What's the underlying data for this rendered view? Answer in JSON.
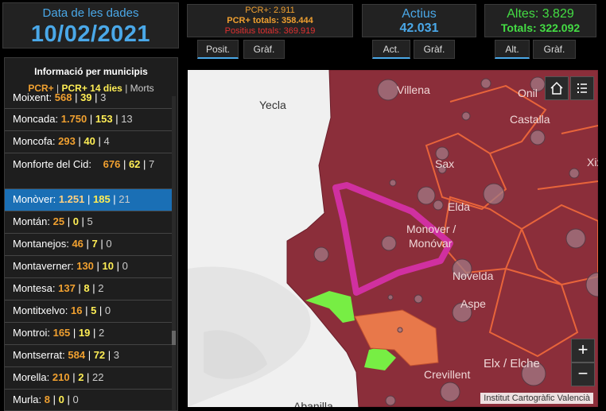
{
  "date_panel": {
    "label": "Data de les dades",
    "date": "10/02/2021"
  },
  "pcr_panel": {
    "pcr_plus": "PCR+: 2.911",
    "pcr_totals": "PCR+ totals: 358.444",
    "positius_totals": "Positius totals: 369.919"
  },
  "actius_panel": {
    "title": "Actius",
    "value": "42.031"
  },
  "altes_panel": {
    "title": "Altes: 3.829",
    "totals": "Totals: 322.092"
  },
  "tabs": {
    "posit": "Posit.",
    "graf1": "Gràf.",
    "act": "Act.",
    "graf2": "Gràf.",
    "alt": "Alt.",
    "graf3": "Gràf."
  },
  "list": {
    "title": "Informació per municipis",
    "legend_pcr": "PCR+",
    "legend_sep1": "|",
    "legend_pcr14": "PCR+ 14 dies",
    "legend_sep2": "|",
    "legend_morts": "Morts",
    "items": [
      {
        "name": "Moixent:",
        "v1": "568",
        "v2": "39",
        "v3": "3"
      },
      {
        "name": "Moncada:",
        "v1": "1.750",
        "v2": "153",
        "v3": "13"
      },
      {
        "name": "Moncofa:",
        "v1": "293",
        "v2": "40",
        "v3": "4"
      },
      {
        "name": "Monforte del Cid:",
        "v1": "676",
        "v2": "62",
        "v3": "7"
      },
      {
        "name": "Monòver:",
        "v1": "1.251",
        "v2": "185",
        "v3": "21"
      },
      {
        "name": "Montán:",
        "v1": "25",
        "v2": "0",
        "v3": "5"
      },
      {
        "name": "Montanejos:",
        "v1": "46",
        "v2": "7",
        "v3": "0"
      },
      {
        "name": "Montaverner:",
        "v1": "130",
        "v2": "10",
        "v3": "0"
      },
      {
        "name": "Montesa:",
        "v1": "137",
        "v2": "8",
        "v3": "2"
      },
      {
        "name": "Montitxelvo:",
        "v1": "16",
        "v2": "5",
        "v3": "0"
      },
      {
        "name": "Montroi:",
        "v1": "165",
        "v2": "19",
        "v3": "2"
      },
      {
        "name": "Montserrat:",
        "v1": "584",
        "v2": "72",
        "v3": "3"
      },
      {
        "name": "Morella:",
        "v1": "210",
        "v2": "2",
        "v3": "22"
      },
      {
        "name": "Murla:",
        "v1": "8",
        "v2": "0",
        "v3": "0"
      }
    ]
  },
  "map": {
    "labels": {
      "villena": "Villena",
      "yecla": "Yecla",
      "onil": "Onil",
      "castalla": "Castalla",
      "sax": "Sax",
      "xixona": "Xix",
      "elda": "Elda",
      "monover": "Monover /",
      "monovar": "Monóvar",
      "novelda": "Novelda",
      "aspe": "Aspe",
      "elx": "Elx / Elche",
      "crevillent": "Crevillent",
      "abanilla": "Abanilla"
    },
    "attribution": "Institut Cartogràfic Valencià",
    "zoom_in": "+",
    "zoom_out": "−",
    "icons": {
      "home": "home-icon",
      "legend": "list-icon"
    },
    "colors": {
      "region_dark": "#8b2e3a",
      "highlight": "#d030a0",
      "green": "#77ee44",
      "orange": "#e8784a"
    }
  }
}
